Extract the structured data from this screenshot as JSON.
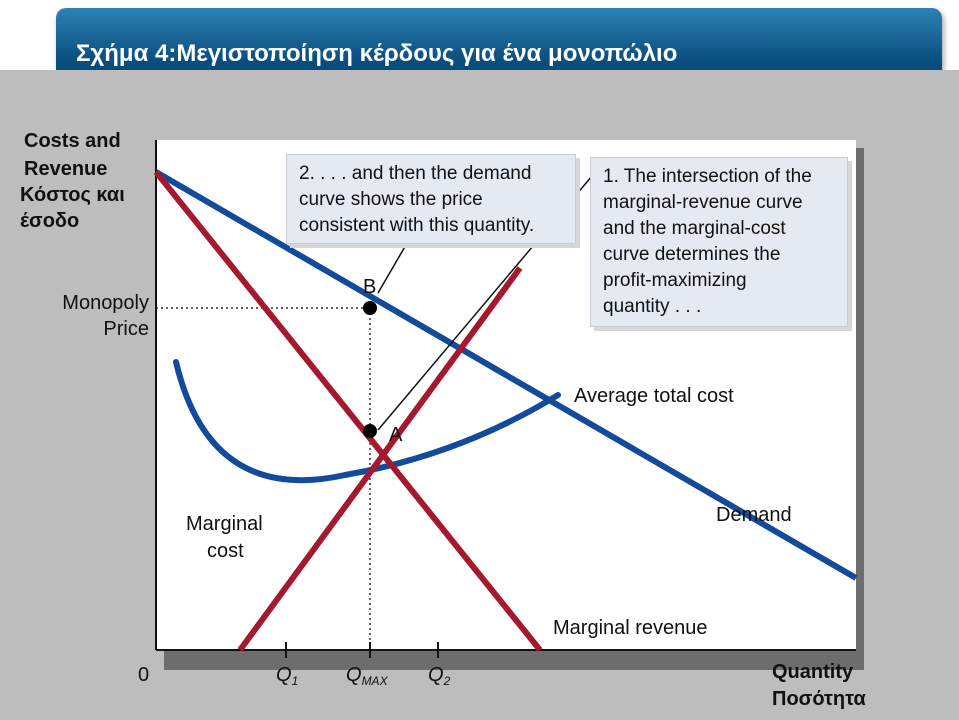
{
  "slide": {
    "title": "Σχήμα 4:Μεγιστοποίηση κέρδους για ένα μονοπώλιο"
  },
  "axes": {
    "y_title_line1": "Costs and",
    "y_title_line2": "Revenue",
    "y_title_greek_line1": "Κόστος και",
    "y_title_greek_line2": "έσοδο",
    "y_tick_line1": "Monopoly",
    "y_tick_line2": "Price",
    "origin": "0",
    "x_title": "Quantity",
    "x_title_greek": "Ποσότητα",
    "x_ticks": [
      {
        "base": "Q",
        "sub": "1"
      },
      {
        "base": "Q",
        "sub": "MAX"
      },
      {
        "base": "Q",
        "sub": "2"
      }
    ]
  },
  "curves": {
    "marginal_cost_line1": "Marginal",
    "marginal_cost_line2": "cost",
    "average_total_cost": "Average total cost",
    "demand": "Demand",
    "marginal_revenue": "Marginal revenue"
  },
  "points": {
    "a": "A",
    "b": "B"
  },
  "callouts": {
    "left": [
      "2. . . . and then the demand",
      "curve shows the price",
      "consistent with this quantity."
    ],
    "right": [
      "1. The intersection of the",
      "marginal-revenue curve",
      "and the marginal-cost",
      "curve determines the",
      "profit-maximizing",
      "quantity . . ."
    ]
  },
  "colors": {
    "marginal_cost": "#a5192e",
    "marginal_revenue": "#a5192e",
    "demand": "#134a99",
    "average_total_cost": "#134a99",
    "title_bar": "#0a4f7f",
    "plot_background": "#ffffff",
    "figure_background": "#bdbdbd",
    "callout_background": "#e5e9f2"
  }
}
